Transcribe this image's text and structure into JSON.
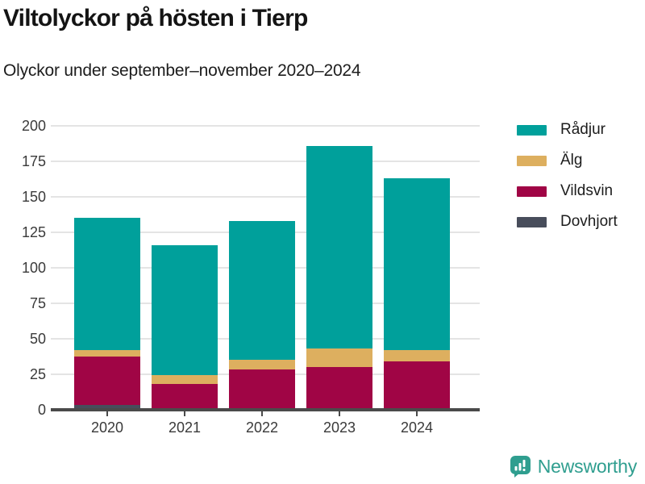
{
  "header": {
    "title": "Viltolyckor på hösten i Tierp",
    "subtitle": "Olyckor under september–november 2020–2024"
  },
  "colors": {
    "radjur": "#00a09b",
    "alg": "#ddaf5f",
    "vildsvin": "#a00545",
    "dovhjort": "#484d5b",
    "brand_teal": "#2f9e8f",
    "grid": "#e4e4e4",
    "axis": "#4a4a4a"
  },
  "chart_data": {
    "type": "bar",
    "stacked": true,
    "title": "Viltolyckor på hösten i Tierp",
    "subtitle": "Olyckor under september–november 2020–2024",
    "categories": [
      "2020",
      "2021",
      "2022",
      "2023",
      "2024"
    ],
    "series": [
      {
        "name": "Rådjur",
        "color": "#00a09b",
        "values": [
          93,
          92,
          98,
          143,
          121
        ]
      },
      {
        "name": "Älg",
        "color": "#ddaf5f",
        "values": [
          5,
          6,
          7,
          13,
          8
        ]
      },
      {
        "name": "Vildsvin",
        "color": "#a00545",
        "values": [
          34,
          18,
          28,
          30,
          34
        ]
      },
      {
        "name": "Dovhjort",
        "color": "#484d5b",
        "values": [
          3,
          0,
          0,
          0,
          0
        ]
      }
    ],
    "totals": [
      135,
      116,
      133,
      186,
      163
    ],
    "stack_order_bottom_to_top": [
      "Dovhjort",
      "Vildsvin",
      "Älg",
      "Rådjur"
    ],
    "xlabel": "",
    "ylabel": "",
    "ylim": [
      0,
      200
    ],
    "yticks": [
      0,
      25,
      50,
      75,
      100,
      125,
      150,
      175,
      200
    ],
    "grid": true,
    "legend_position": "top-right"
  },
  "footer": {
    "brand": "Newsworthy"
  }
}
